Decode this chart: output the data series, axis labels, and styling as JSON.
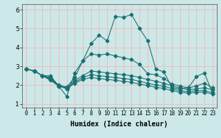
{
  "xlabel": "Humidex (Indice chaleur)",
  "bg_color": "#cce8e8",
  "grid_color": "#ffaaaa",
  "line_color": "#1a7070",
  "xlim": [
    -0.5,
    23.5
  ],
  "ylim": [
    0.8,
    6.3
  ],
  "xticks": [
    0,
    1,
    2,
    3,
    4,
    5,
    6,
    7,
    8,
    9,
    10,
    11,
    12,
    13,
    14,
    15,
    16,
    17,
    18,
    19,
    20,
    21,
    22,
    23
  ],
  "yticks": [
    1,
    2,
    3,
    4,
    5,
    6
  ],
  "line1_x": [
    0,
    1,
    2,
    3,
    4,
    5,
    6,
    7,
    8,
    9,
    10,
    11,
    12,
    13,
    14,
    15,
    16,
    17,
    18,
    19,
    20,
    21,
    22,
    23
  ],
  "line1_y": [
    2.85,
    2.75,
    2.5,
    2.5,
    1.95,
    1.4,
    2.65,
    3.3,
    4.2,
    4.65,
    4.35,
    5.65,
    5.6,
    5.75,
    5.0,
    4.35,
    2.85,
    2.7,
    1.85,
    1.8,
    1.85,
    2.45,
    2.65,
    1.55
  ],
  "line2_x": [
    0,
    1,
    2,
    3,
    4,
    5,
    6,
    7,
    8,
    9,
    10,
    11,
    12,
    13,
    14,
    15,
    16,
    17,
    18,
    19,
    20,
    21,
    22,
    23
  ],
  "line2_y": [
    2.85,
    2.75,
    2.5,
    2.4,
    2.0,
    1.9,
    2.4,
    3.3,
    3.65,
    3.6,
    3.65,
    3.55,
    3.45,
    3.35,
    3.1,
    2.6,
    2.55,
    2.35,
    2.05,
    1.95,
    1.85,
    1.95,
    2.1,
    1.85
  ],
  "line3_x": [
    0,
    1,
    2,
    3,
    4,
    5,
    6,
    7,
    8,
    9,
    10,
    11,
    12,
    13,
    14,
    15,
    16,
    17,
    18,
    19,
    20,
    21,
    22,
    23
  ],
  "line3_y": [
    2.85,
    2.75,
    2.5,
    2.35,
    1.95,
    1.85,
    2.25,
    2.5,
    2.75,
    2.7,
    2.65,
    2.6,
    2.55,
    2.5,
    2.4,
    2.3,
    2.2,
    2.1,
    1.95,
    1.85,
    1.75,
    1.8,
    1.85,
    1.75
  ],
  "line4_x": [
    0,
    1,
    2,
    3,
    4,
    5,
    6,
    7,
    8,
    9,
    10,
    11,
    12,
    13,
    14,
    15,
    16,
    17,
    18,
    19,
    20,
    21,
    22,
    23
  ],
  "line4_y": [
    2.85,
    2.75,
    2.5,
    2.3,
    1.95,
    1.85,
    2.15,
    2.4,
    2.55,
    2.5,
    2.45,
    2.4,
    2.35,
    2.3,
    2.2,
    2.1,
    2.0,
    1.95,
    1.8,
    1.7,
    1.65,
    1.7,
    1.7,
    1.6
  ],
  "line5_x": [
    0,
    1,
    2,
    3,
    4,
    5,
    6,
    7,
    8,
    9,
    10,
    11,
    12,
    13,
    14,
    15,
    16,
    17,
    18,
    19,
    20,
    21,
    22,
    23
  ],
  "line5_y": [
    2.85,
    2.75,
    2.5,
    2.25,
    1.95,
    1.8,
    2.1,
    2.3,
    2.4,
    2.35,
    2.3,
    2.25,
    2.2,
    2.15,
    2.05,
    1.98,
    1.88,
    1.82,
    1.7,
    1.62,
    1.57,
    1.62,
    1.62,
    1.52
  ]
}
